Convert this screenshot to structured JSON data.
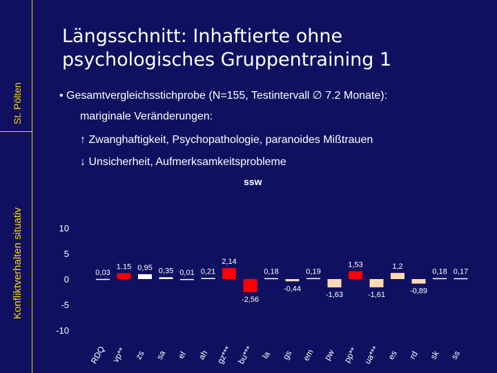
{
  "sidebar": {
    "top_label": "St. Pölten",
    "bottom_label": "Konfliktverhalten situativ"
  },
  "slide": {
    "title": "Längsschnitt: Inhaftierte ohne psychologisches Gruppentraining 1",
    "bullet": "• Gesamtvergleichsstichprobe (N=155, Testintervall ∅ 7.2 Monate):",
    "line2": "mariginale Veränderungen:",
    "line3": "↑ Zwanghaftigkeit, Psychopathologie, paranoides Mißtrauen",
    "line4": "↓ Unsicherheit, Aufmerksamkeitsprobleme"
  },
  "colors": {
    "background": "#0f1160",
    "accent": "#ffd500",
    "bar_default": "#ffffff",
    "bar_significant": "#ff0000",
    "bar_negative_light": "#ffd9b3"
  },
  "chart_data": {
    "type": "bar",
    "title": "ssw",
    "categories": [
      "RDQ",
      "vp**",
      "zs",
      "sa",
      "el",
      "ah",
      "gz***",
      "bu***",
      "la",
      "gs",
      "em",
      "pw",
      "pp**",
      "ua***",
      "es",
      "rd",
      "sk",
      "ss"
    ],
    "values": [
      0.03,
      1.15,
      0.95,
      0.35,
      0.01,
      0.21,
      2.14,
      -2.56,
      0.18,
      -0.44,
      0.19,
      -1.63,
      1.53,
      -1.61,
      1.2,
      -0.89,
      0.18,
      0.17
    ],
    "data_labels": [
      "0,03",
      "1.15",
      "0,95",
      "0,35",
      "0,01",
      "0,21",
      "2,14",
      "-2,56",
      "0,18",
      "-0,44",
      "0,19",
      "-1,63",
      "1,53",
      "-1,61",
      "1,2",
      "-0,89",
      "0,18",
      "0,17"
    ],
    "bar_colors": [
      "#ffffff",
      "#ff0000",
      "#ffffff",
      "#ffffff",
      "#ffffff",
      "#ffffff",
      "#ff0000",
      "#ff0000",
      "#ffffff",
      "#ffd9b3",
      "#ffffff",
      "#ffd9b3",
      "#ff0000",
      "#ffd9b3",
      "#ffd9b3",
      "#ffd9b3",
      "#ffffff",
      "#ffffff"
    ],
    "ylim": [
      -10,
      10
    ],
    "yticks": [
      10,
      5,
      0,
      -5,
      -10
    ],
    "grid": false,
    "xlabel": "",
    "ylabel": ""
  }
}
